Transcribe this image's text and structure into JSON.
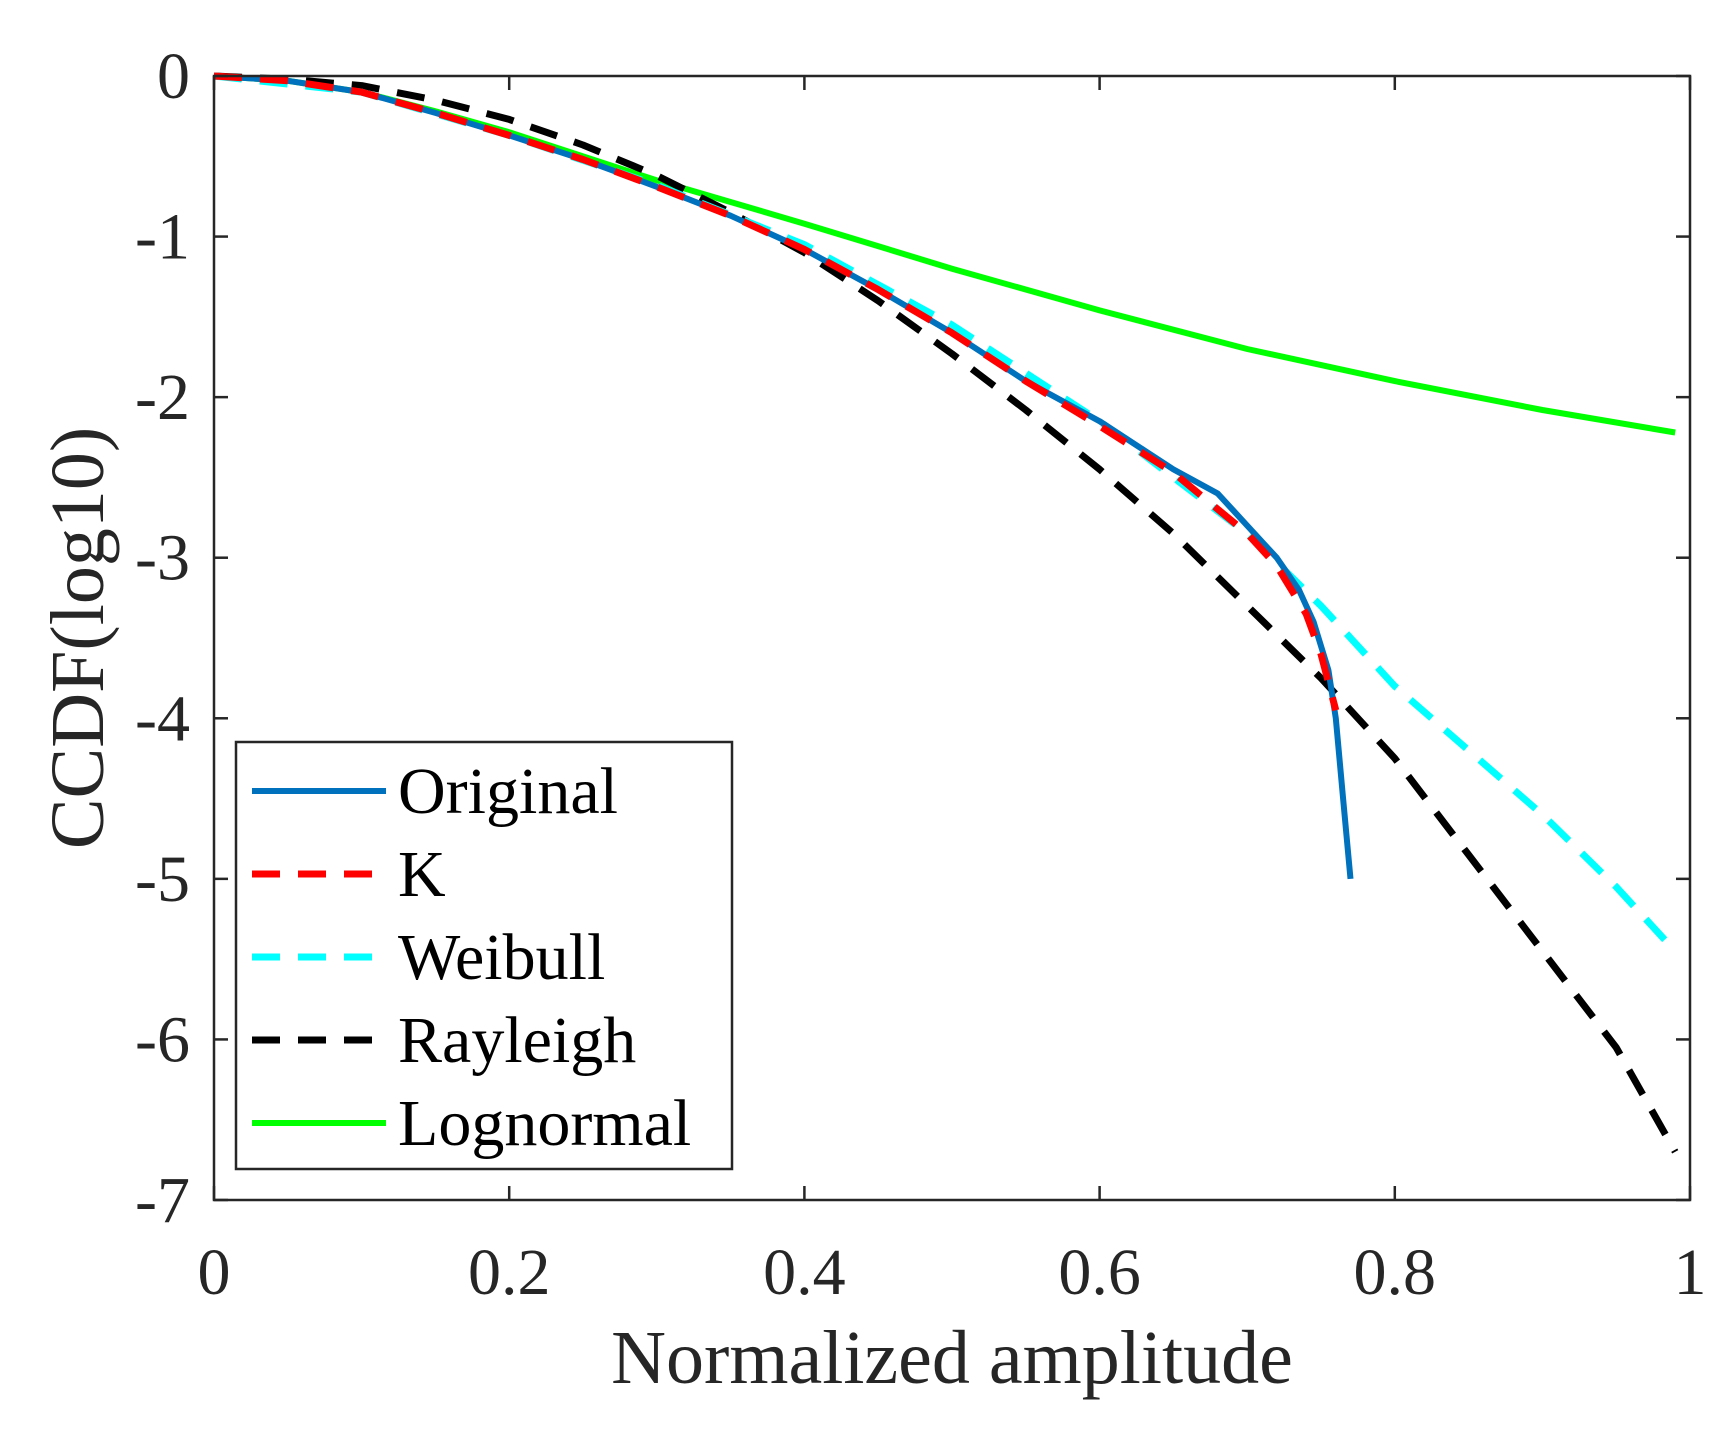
{
  "chart_data": {
    "type": "line",
    "title": "",
    "xlabel": "Normalized amplitude",
    "ylabel": "CCDF(log10)",
    "xlim": [
      0,
      1
    ],
    "ylim": [
      -7,
      0
    ],
    "xticks": [
      0,
      0.2,
      0.4,
      0.6,
      0.8,
      1
    ],
    "xtick_labels": [
      "0",
      "0.2",
      "0.4",
      "0.6",
      "0.8",
      "1"
    ],
    "yticks": [
      0,
      -1,
      -2,
      -3,
      -4,
      -5,
      -6,
      -7
    ],
    "ytick_labels": [
      "0",
      "-1",
      "-2",
      "-3",
      "-4",
      "-5",
      "-6",
      "-7"
    ],
    "grid": false,
    "legend_position": "bottom-left",
    "series": [
      {
        "name": "Original",
        "color": "#0072BD",
        "style": "solid",
        "x": [
          0,
          0.05,
          0.1,
          0.15,
          0.2,
          0.25,
          0.3,
          0.35,
          0.4,
          0.45,
          0.5,
          0.55,
          0.6,
          0.63,
          0.65,
          0.68,
          0.7,
          0.72,
          0.735,
          0.745,
          0.755,
          0.76,
          0.765,
          0.77
        ],
        "y": [
          0,
          -0.03,
          -0.1,
          -0.23,
          -0.37,
          -0.52,
          -0.69,
          -0.87,
          -1.08,
          -1.33,
          -1.6,
          -1.9,
          -2.15,
          -2.33,
          -2.45,
          -2.6,
          -2.8,
          -3.0,
          -3.2,
          -3.4,
          -3.7,
          -4.0,
          -4.5,
          -5.0
        ]
      },
      {
        "name": "K",
        "color": "#FF0000",
        "style": "dashed",
        "x": [
          0,
          0.05,
          0.1,
          0.15,
          0.2,
          0.25,
          0.3,
          0.35,
          0.4,
          0.45,
          0.5,
          0.55,
          0.6,
          0.65,
          0.7,
          0.72,
          0.74,
          0.75,
          0.76
        ],
        "y": [
          0,
          -0.03,
          -0.1,
          -0.23,
          -0.37,
          -0.52,
          -0.69,
          -0.87,
          -1.08,
          -1.33,
          -1.6,
          -1.9,
          -2.18,
          -2.47,
          -2.85,
          -3.05,
          -3.35,
          -3.6,
          -3.95
        ]
      },
      {
        "name": "Weibull",
        "color": "#00FFFF",
        "style": "dashed",
        "x": [
          0,
          0.1,
          0.2,
          0.3,
          0.4,
          0.5,
          0.6,
          0.7,
          0.75,
          0.8,
          0.85,
          0.9,
          0.95,
          0.99
        ],
        "y": [
          0,
          -0.1,
          -0.37,
          -0.68,
          -1.05,
          -1.55,
          -2.15,
          -2.85,
          -3.3,
          -3.8,
          -4.2,
          -4.6,
          -5.05,
          -5.45
        ]
      },
      {
        "name": "Rayleigh",
        "color": "#000000",
        "style": "dashed",
        "x": [
          0,
          0.05,
          0.1,
          0.15,
          0.2,
          0.25,
          0.3,
          0.35,
          0.4,
          0.45,
          0.5,
          0.55,
          0.6,
          0.65,
          0.7,
          0.75,
          0.8,
          0.85,
          0.9,
          0.95,
          0.99
        ],
        "y": [
          0,
          -0.02,
          -0.06,
          -0.15,
          -0.27,
          -0.43,
          -0.62,
          -0.85,
          -1.1,
          -1.4,
          -1.73,
          -2.08,
          -2.45,
          -2.85,
          -3.3,
          -3.75,
          -4.25,
          -4.85,
          -5.45,
          -6.05,
          -6.7
        ]
      },
      {
        "name": "Lognormal",
        "color": "#00FF00",
        "style": "solid",
        "x": [
          0,
          0.05,
          0.1,
          0.15,
          0.2,
          0.3,
          0.4,
          0.5,
          0.6,
          0.7,
          0.8,
          0.9,
          0.99
        ],
        "y": [
          0,
          -0.03,
          -0.1,
          -0.22,
          -0.35,
          -0.65,
          -0.92,
          -1.2,
          -1.46,
          -1.7,
          -1.9,
          -2.08,
          -2.22
        ]
      }
    ]
  }
}
